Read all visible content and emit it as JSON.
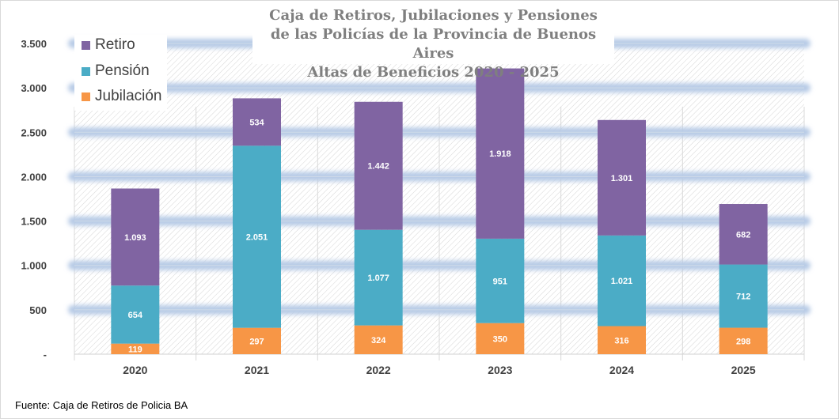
{
  "chart_data": {
    "type": "bar",
    "stacked": true,
    "title": [
      "Caja de Retiros, Jubilaciones y Pensiones",
      "de las Policías de la Provincia de Buenos Aires",
      "Altas de Beneficios 2020  - 2025"
    ],
    "categories": [
      "2020",
      "2021",
      "2022",
      "2023",
      "2024",
      "2025"
    ],
    "series": [
      {
        "name": "Jubilación",
        "color": "#f79646",
        "values": [
          119,
          297,
          324,
          350,
          316,
          298
        ],
        "labels": [
          "119",
          "297",
          "324",
          "350",
          "316",
          "298"
        ]
      },
      {
        "name": "Pensión",
        "color": "#4bacc6",
        "values": [
          654,
          2051,
          1077,
          951,
          1021,
          712
        ],
        "labels": [
          "654",
          "2.051",
          "1.077",
          "951",
          "1.021",
          "712"
        ]
      },
      {
        "name": "Retiro",
        "color": "#8064a2",
        "values": [
          1093,
          534,
          1442,
          1918,
          1301,
          682
        ],
        "labels": [
          "1.093",
          "534",
          "1.442",
          "1.918",
          "1.301",
          "682"
        ]
      }
    ],
    "ylim": [
      0,
      3500
    ],
    "yticks": [
      0,
      500,
      1000,
      1500,
      2000,
      2500,
      3000,
      3500
    ],
    "ytick_labels": [
      "-",
      "500",
      "1.000",
      "1.500",
      "2.000",
      "2.500",
      "3.000",
      "3.500"
    ],
    "legend_placement": "top-left",
    "grid": true
  },
  "legend": [
    "Retiro",
    "Pensión",
    "Jubilación"
  ],
  "source": "Fuente: Caja de Retiros de Policia BA"
}
